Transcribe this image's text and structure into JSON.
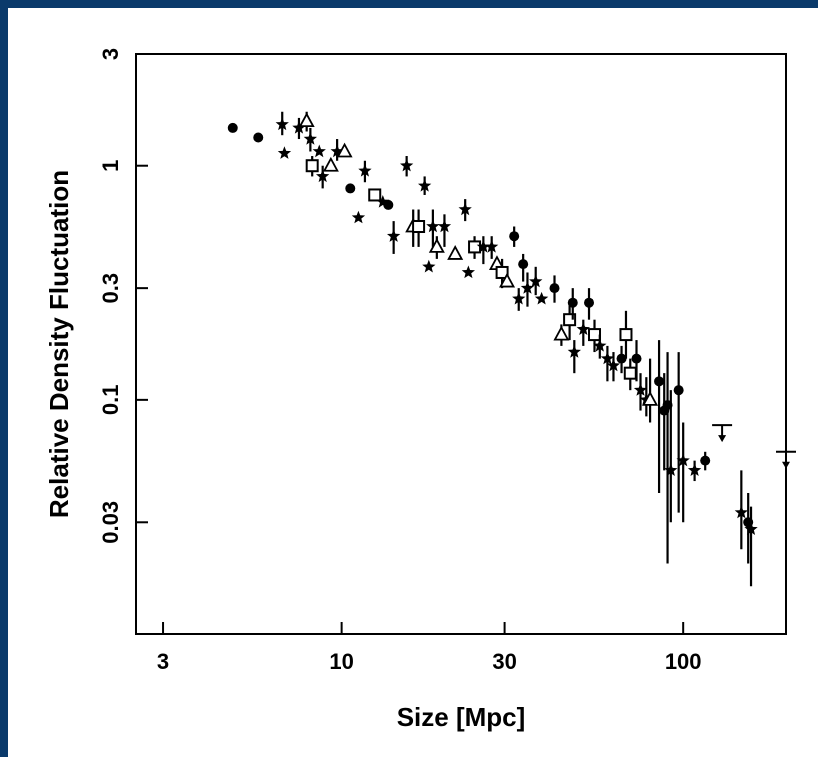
{
  "chart_data": {
    "type": "scatter",
    "title": "",
    "xlabel": "Size [Mpc]",
    "ylabel": "Relative Density Fluctuation",
    "x_scale": "log",
    "y_scale": "log",
    "xlim": [
      2.5,
      200
    ],
    "ylim": [
      0.01,
      3
    ],
    "x_ticks": [
      {
        "value": 3,
        "label": "3"
      },
      {
        "value": 10,
        "label": "10"
      },
      {
        "value": 30,
        "label": "30"
      },
      {
        "value": 100,
        "label": "100"
      }
    ],
    "y_ticks": [
      {
        "value": 3,
        "label": "3"
      },
      {
        "value": 1,
        "label": "1"
      },
      {
        "value": 0.3,
        "label": "0.3"
      },
      {
        "value": 0.1,
        "label": "0.1"
      },
      {
        "value": 0.03,
        "label": "0.03"
      }
    ],
    "grid": false,
    "legend": "none",
    "points": [
      {
        "x": 4.8,
        "y": 1.45,
        "marker": "dot"
      },
      {
        "x": 5.7,
        "y": 1.32,
        "marker": "dot"
      },
      {
        "x": 6.7,
        "y": 1.5,
        "lo": 1.35,
        "hi": 1.7,
        "marker": "star"
      },
      {
        "x": 6.8,
        "y": 1.13,
        "marker": "star"
      },
      {
        "x": 7.5,
        "y": 1.45,
        "lo": 1.3,
        "hi": 1.6,
        "marker": "star"
      },
      {
        "x": 7.9,
        "y": 1.55,
        "lo": 1.4,
        "hi": 1.7,
        "marker": "triangle"
      },
      {
        "x": 8.1,
        "y": 1.3,
        "lo": 1.15,
        "hi": 1.45,
        "marker": "star"
      },
      {
        "x": 8.2,
        "y": 1.0,
        "lo": 0.9,
        "hi": 1.1,
        "marker": "square"
      },
      {
        "x": 8.6,
        "y": 1.15,
        "marker": "star"
      },
      {
        "x": 8.8,
        "y": 0.9,
        "lo": 0.8,
        "hi": 1.0,
        "marker": "star"
      },
      {
        "x": 9.3,
        "y": 1.0,
        "marker": "triangle"
      },
      {
        "x": 9.7,
        "y": 1.15,
        "lo": 1.05,
        "hi": 1.3,
        "marker": "star"
      },
      {
        "x": 10.2,
        "y": 1.15,
        "marker": "triangle"
      },
      {
        "x": 10.6,
        "y": 0.8,
        "marker": "dot"
      },
      {
        "x": 11.2,
        "y": 0.6,
        "marker": "star"
      },
      {
        "x": 11.7,
        "y": 0.95,
        "lo": 0.85,
        "hi": 1.05,
        "marker": "star"
      },
      {
        "x": 12.5,
        "y": 0.75,
        "marker": "square"
      },
      {
        "x": 13.2,
        "y": 0.7,
        "marker": "star"
      },
      {
        "x": 13.7,
        "y": 0.68,
        "marker": "dot"
      },
      {
        "x": 14.2,
        "y": 0.5,
        "lo": 0.42,
        "hi": 0.58,
        "marker": "star"
      },
      {
        "x": 15.5,
        "y": 1.0,
        "lo": 0.9,
        "hi": 1.1,
        "marker": "star"
      },
      {
        "x": 16.2,
        "y": 0.55,
        "lo": 0.45,
        "hi": 0.65,
        "marker": "triangle"
      },
      {
        "x": 16.8,
        "y": 0.55,
        "lo": 0.45,
        "hi": 0.65,
        "marker": "square"
      },
      {
        "x": 17.5,
        "y": 0.82,
        "lo": 0.75,
        "hi": 0.9,
        "marker": "star"
      },
      {
        "x": 18.0,
        "y": 0.37,
        "marker": "star"
      },
      {
        "x": 18.5,
        "y": 0.55,
        "lo": 0.45,
        "hi": 0.65,
        "marker": "star"
      },
      {
        "x": 19.0,
        "y": 0.45,
        "lo": 0.4,
        "hi": 0.5,
        "marker": "triangle"
      },
      {
        "x": 20.0,
        "y": 0.55,
        "lo": 0.45,
        "hi": 0.62,
        "marker": "star"
      },
      {
        "x": 21.5,
        "y": 0.42,
        "marker": "triangle"
      },
      {
        "x": 23.0,
        "y": 0.65,
        "lo": 0.58,
        "hi": 0.72,
        "marker": "star"
      },
      {
        "x": 23.5,
        "y": 0.35,
        "marker": "star"
      },
      {
        "x": 24.5,
        "y": 0.45,
        "lo": 0.4,
        "hi": 0.5,
        "marker": "square"
      },
      {
        "x": 26.0,
        "y": 0.45,
        "lo": 0.38,
        "hi": 0.5,
        "marker": "star"
      },
      {
        "x": 27.5,
        "y": 0.45,
        "lo": 0.4,
        "hi": 0.5,
        "marker": "star"
      },
      {
        "x": 28.5,
        "y": 0.38,
        "marker": "triangle"
      },
      {
        "x": 29.5,
        "y": 0.35,
        "lo": 0.3,
        "hi": 0.4,
        "marker": "square"
      },
      {
        "x": 30.5,
        "y": 0.32,
        "marker": "triangle"
      },
      {
        "x": 32.0,
        "y": 0.5,
        "lo": 0.45,
        "hi": 0.55,
        "marker": "dot"
      },
      {
        "x": 33.0,
        "y": 0.27,
        "lo": 0.24,
        "hi": 0.3,
        "marker": "star"
      },
      {
        "x": 34.0,
        "y": 0.38,
        "lo": 0.32,
        "hi": 0.42,
        "marker": "dot"
      },
      {
        "x": 35.0,
        "y": 0.3,
        "lo": 0.25,
        "hi": 0.35,
        "marker": "star"
      },
      {
        "x": 37.0,
        "y": 0.32,
        "lo": 0.28,
        "hi": 0.37,
        "marker": "star"
      },
      {
        "x": 38.5,
        "y": 0.27,
        "marker": "star"
      },
      {
        "x": 42.0,
        "y": 0.3,
        "lo": 0.26,
        "hi": 0.34,
        "marker": "dot"
      },
      {
        "x": 44.0,
        "y": 0.19,
        "lo": 0.17,
        "hi": 0.21,
        "marker": "triangle"
      },
      {
        "x": 46.5,
        "y": 0.22,
        "lo": 0.18,
        "hi": 0.26,
        "marker": "square"
      },
      {
        "x": 47.5,
        "y": 0.26,
        "lo": 0.22,
        "hi": 0.3,
        "marker": "dot"
      },
      {
        "x": 48.0,
        "y": 0.16,
        "lo": 0.13,
        "hi": 0.18,
        "marker": "star"
      },
      {
        "x": 51.0,
        "y": 0.2,
        "lo": 0.17,
        "hi": 0.22,
        "marker": "star"
      },
      {
        "x": 53.0,
        "y": 0.26,
        "lo": 0.22,
        "hi": 0.3,
        "marker": "dot"
      },
      {
        "x": 55.0,
        "y": 0.19,
        "lo": 0.16,
        "hi": 0.22,
        "marker": "square"
      },
      {
        "x": 57.0,
        "y": 0.17,
        "lo": 0.15,
        "hi": 0.19,
        "marker": "star"
      },
      {
        "x": 60.0,
        "y": 0.15,
        "lo": 0.12,
        "hi": 0.17,
        "marker": "star"
      },
      {
        "x": 62.5,
        "y": 0.14,
        "lo": 0.12,
        "hi": 0.16,
        "marker": "star"
      },
      {
        "x": 66.0,
        "y": 0.15,
        "lo": 0.13,
        "hi": 0.17,
        "marker": "dot"
      },
      {
        "x": 68.0,
        "y": 0.19,
        "lo": 0.15,
        "hi": 0.24,
        "marker": "square"
      },
      {
        "x": 70.0,
        "y": 0.13,
        "lo": 0.11,
        "hi": 0.15,
        "marker": "square"
      },
      {
        "x": 73.0,
        "y": 0.15,
        "lo": 0.12,
        "hi": 0.18,
        "marker": "dot"
      },
      {
        "x": 75.0,
        "y": 0.11,
        "lo": 0.09,
        "hi": 0.13,
        "marker": "star"
      },
      {
        "x": 78.0,
        "y": 0.1,
        "lo": 0.085,
        "hi": 0.125,
        "marker": "star"
      },
      {
        "x": 80.0,
        "y": 0.1,
        "lo": 0.08,
        "hi": 0.15,
        "marker": "triangle"
      },
      {
        "x": 85.0,
        "y": 0.12,
        "lo": 0.04,
        "hi": 0.18,
        "marker": "dot"
      },
      {
        "x": 88.0,
        "y": 0.09,
        "lo": 0.05,
        "hi": 0.13,
        "marker": "dot"
      },
      {
        "x": 90.0,
        "y": 0.095,
        "lo": 0.02,
        "hi": 0.16,
        "marker": "dot"
      },
      {
        "x": 92.0,
        "y": 0.05,
        "lo": 0.03,
        "hi": 0.11,
        "marker": "star"
      },
      {
        "x": 97.0,
        "y": 0.11,
        "lo": 0.033,
        "hi": 0.16,
        "marker": "dot"
      },
      {
        "x": 100.0,
        "y": 0.055,
        "lo": 0.03,
        "hi": 0.08,
        "marker": "star"
      },
      {
        "x": 108.0,
        "y": 0.05,
        "lo": 0.045,
        "hi": 0.055,
        "marker": "star"
      },
      {
        "x": 116.0,
        "y": 0.055,
        "lo": 0.05,
        "hi": 0.06,
        "marker": "dot"
      },
      {
        "x": 148.0,
        "y": 0.033,
        "lo": 0.023,
        "hi": 0.05,
        "marker": "star"
      },
      {
        "x": 155.0,
        "y": 0.03,
        "lo": 0.02,
        "hi": 0.04,
        "marker": "dot"
      },
      {
        "x": 158.0,
        "y": 0.028,
        "lo": 0.016,
        "hi": 0.035,
        "marker": "star"
      }
    ],
    "upper_limits": [
      {
        "x": 130.0,
        "y": 0.078
      },
      {
        "x": 200.0,
        "y": 0.06
      }
    ]
  }
}
